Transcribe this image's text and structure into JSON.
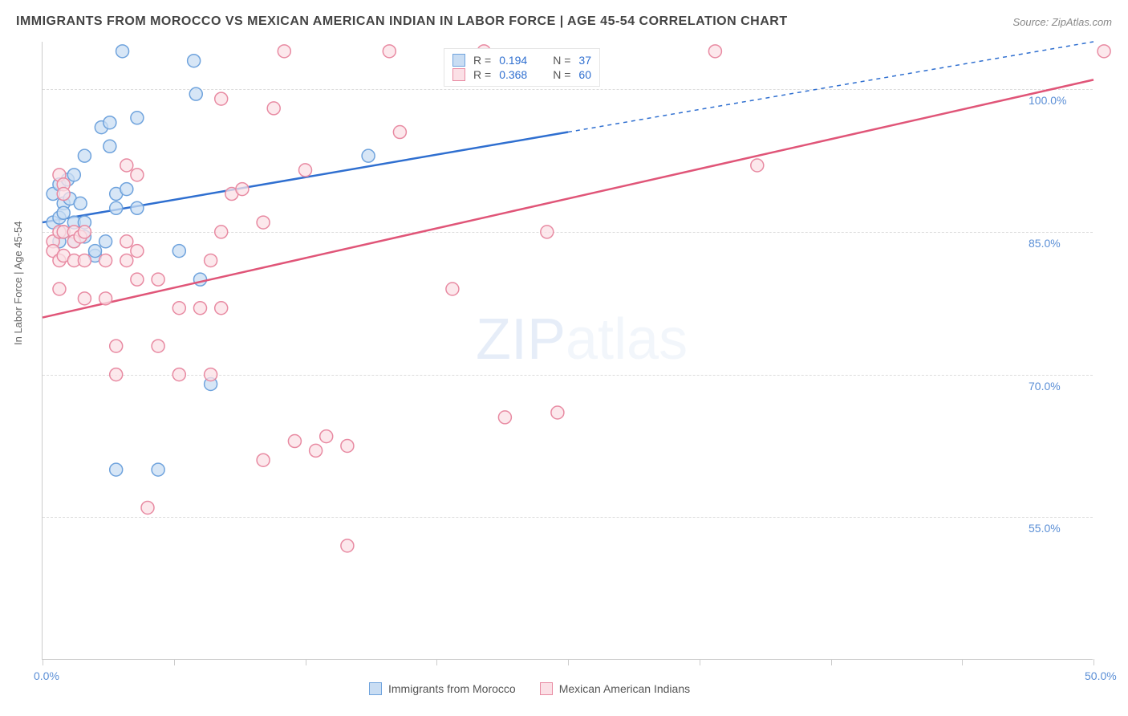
{
  "header": {
    "title": "IMMIGRANTS FROM MOROCCO VS MEXICAN AMERICAN INDIAN IN LABOR FORCE | AGE 45-54 CORRELATION CHART",
    "source": "Source: ZipAtlas.com"
  },
  "chart": {
    "type": "scatter",
    "ylabel": "In Labor Force | Age 45-54",
    "xlim": [
      0,
      50
    ],
    "ylim": [
      40,
      105
    ],
    "xticks": [
      0,
      6.25,
      12.5,
      18.75,
      25,
      31.25,
      37.5,
      43.75,
      50
    ],
    "xtick_labels": {
      "0": "0.0%",
      "50": "50.0%"
    },
    "yticks": [
      55,
      70,
      85,
      100
    ],
    "ytick_labels": [
      "55.0%",
      "70.0%",
      "85.0%",
      "100.0%"
    ],
    "grid_color": "#dddddd",
    "background_color": "#ffffff",
    "series": [
      {
        "name": "Immigrants from Morocco",
        "key": "morocco",
        "marker_fill": "#c9ddf3",
        "marker_stroke": "#6fa3dd",
        "line_color": "#2f6fd0",
        "line_dash_color": "#2f6fd0",
        "R": "0.194",
        "N": "37",
        "regression": {
          "x1": 0,
          "y1": 86,
          "x2_solid": 25,
          "y2_solid": 95.5,
          "x2": 50,
          "y2": 105
        },
        "points": [
          [
            3.8,
            104
          ],
          [
            7.2,
            103
          ],
          [
            7.3,
            99.5
          ],
          [
            2.8,
            96
          ],
          [
            3.2,
            96.5
          ],
          [
            4.5,
            97
          ],
          [
            2.0,
            93
          ],
          [
            3.2,
            94
          ],
          [
            15.5,
            93
          ],
          [
            0.5,
            89
          ],
          [
            0.8,
            90
          ],
          [
            1.2,
            90.5
          ],
          [
            1.5,
            91
          ],
          [
            1.0,
            88
          ],
          [
            1.3,
            88.5
          ],
          [
            1.8,
            88
          ],
          [
            3.5,
            89
          ],
          [
            4.0,
            89.5
          ],
          [
            0.5,
            86
          ],
          [
            0.8,
            86.5
          ],
          [
            1.0,
            87
          ],
          [
            1.5,
            86
          ],
          [
            2.0,
            86
          ],
          [
            3.5,
            87.5
          ],
          [
            4.5,
            87.5
          ],
          [
            0.8,
            84
          ],
          [
            1.0,
            85
          ],
          [
            1.5,
            84
          ],
          [
            2.0,
            84.5
          ],
          [
            2.5,
            82.5
          ],
          [
            2.5,
            83
          ],
          [
            3.0,
            84
          ],
          [
            6.5,
            83
          ],
          [
            7.5,
            80
          ],
          [
            8.0,
            69
          ],
          [
            3.5,
            60
          ],
          [
            5.5,
            60
          ]
        ]
      },
      {
        "name": "Mexican American Indians",
        "key": "mexican",
        "marker_fill": "#fbe0e6",
        "marker_stroke": "#e88aa2",
        "line_color": "#e05578",
        "R": "0.368",
        "N": "60",
        "regression": {
          "x1": 0,
          "y1": 76,
          "x2": 50,
          "y2": 101
        },
        "points": [
          [
            11.5,
            104
          ],
          [
            16.5,
            104
          ],
          [
            21.0,
            104
          ],
          [
            32.0,
            104
          ],
          [
            50.5,
            104
          ],
          [
            8.5,
            99
          ],
          [
            11.0,
            98
          ],
          [
            17.0,
            95.5
          ],
          [
            0.8,
            91
          ],
          [
            1.0,
            90
          ],
          [
            1.0,
            89
          ],
          [
            4.0,
            92
          ],
          [
            4.5,
            91
          ],
          [
            9.0,
            89
          ],
          [
            9.5,
            89.5
          ],
          [
            12.5,
            91.5
          ],
          [
            34.0,
            92
          ],
          [
            0.5,
            84
          ],
          [
            0.8,
            85
          ],
          [
            1.0,
            85
          ],
          [
            1.5,
            85
          ],
          [
            1.5,
            84
          ],
          [
            1.8,
            84.5
          ],
          [
            2.0,
            85
          ],
          [
            4.0,
            84
          ],
          [
            4.5,
            83
          ],
          [
            8.5,
            85
          ],
          [
            10.5,
            86
          ],
          [
            24.0,
            85
          ],
          [
            0.5,
            83
          ],
          [
            0.8,
            82
          ],
          [
            1.0,
            82.5
          ],
          [
            1.5,
            82
          ],
          [
            2.0,
            82
          ],
          [
            3.0,
            82
          ],
          [
            4.0,
            82
          ],
          [
            4.5,
            80
          ],
          [
            5.5,
            80
          ],
          [
            8.0,
            82
          ],
          [
            0.8,
            79
          ],
          [
            2.0,
            78
          ],
          [
            3.0,
            78
          ],
          [
            6.5,
            77
          ],
          [
            7.5,
            77
          ],
          [
            8.5,
            77
          ],
          [
            19.5,
            79
          ],
          [
            3.5,
            73
          ],
          [
            5.5,
            73
          ],
          [
            3.5,
            70
          ],
          [
            6.5,
            70
          ],
          [
            8.0,
            70
          ],
          [
            24.5,
            66
          ],
          [
            22.0,
            65.5
          ],
          [
            12.0,
            63
          ],
          [
            13.0,
            62
          ],
          [
            13.5,
            63.5
          ],
          [
            14.5,
            62.5
          ],
          [
            10.5,
            61
          ],
          [
            5.0,
            56
          ],
          [
            14.5,
            52
          ]
        ]
      }
    ]
  },
  "legend_bottom": {
    "items": [
      {
        "label": "Immigrants from Morocco",
        "fill": "#c9ddf3",
        "stroke": "#6fa3dd"
      },
      {
        "label": "Mexican American Indians",
        "fill": "#fbe0e6",
        "stroke": "#e88aa2"
      }
    ]
  },
  "legend_top": {
    "r_label": "R  =",
    "n_label": "N  ="
  },
  "watermark": {
    "text1": "ZIP",
    "text2": "atlas"
  }
}
